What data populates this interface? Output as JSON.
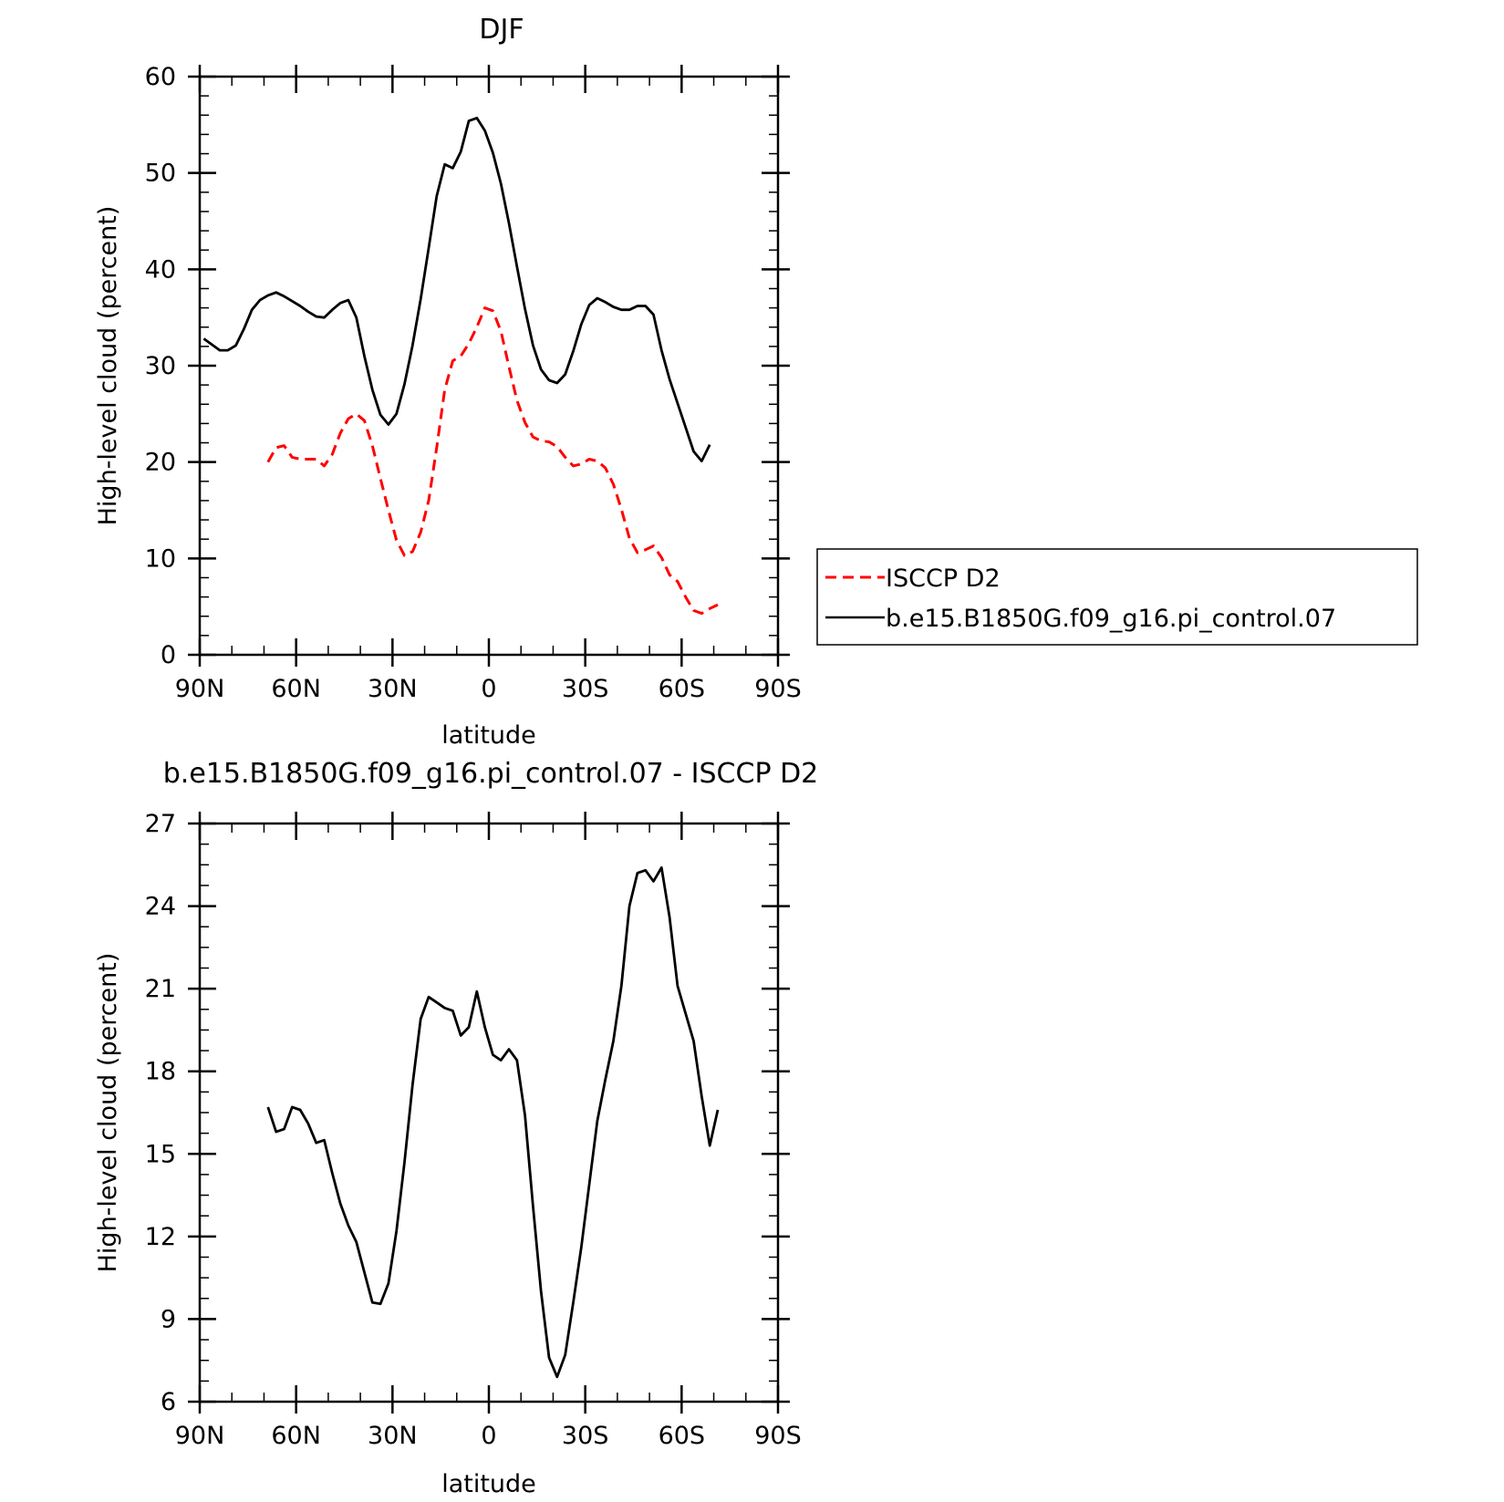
{
  "colors": {
    "model": "#000000",
    "obs": "#ff0000"
  },
  "chart_data": [
    {
      "type": "line",
      "title": "DJF",
      "xlabel": "latitude",
      "ylabel": "High-level cloud (percent)",
      "xlim": [
        90,
        -90
      ],
      "ylim": [
        0,
        60
      ],
      "yticks": [
        0,
        10,
        20,
        30,
        40,
        50,
        60
      ],
      "xticks": [
        90,
        60,
        30,
        0,
        -30,
        -60,
        -90
      ],
      "xtick_labels": [
        "90N",
        "60N",
        "30N",
        "0",
        "30S",
        "60S",
        "90S"
      ],
      "legend_position": "right",
      "series": [
        {
          "name": "ISCCP D2",
          "style": "dashed",
          "color": "#ff0000",
          "x": [
            68.75,
            66.25,
            63.75,
            61.25,
            58.75,
            56.25,
            53.75,
            51.25,
            48.75,
            46.25,
            43.75,
            41.25,
            38.75,
            36.25,
            33.75,
            31.25,
            28.75,
            26.25,
            23.75,
            21.25,
            18.75,
            16.25,
            13.75,
            11.25,
            8.75,
            6.25,
            3.75,
            1.25,
            -1.25,
            -3.75,
            -6.25,
            -8.75,
            -11.25,
            -13.75,
            -16.25,
            -18.75,
            -21.25,
            -23.75,
            -26.25,
            -28.75,
            -31.25,
            -33.75,
            -36.25,
            -38.75,
            -41.25,
            -43.75,
            -46.25,
            -48.75,
            -51.25,
            -53.75,
            -56.25,
            -58.75,
            -61.25,
            -63.75,
            -66.25,
            -68.75,
            -71.25,
            -73.75,
            -76.25,
            -78.75,
            -81.25,
            -83.75,
            -86.25,
            -88.75
          ],
          "y": [
            20.0,
            21.5,
            21.7,
            20.5,
            20.3,
            20.3,
            20.3,
            19.6,
            20.8,
            23.0,
            24.5,
            25.0,
            24.3,
            21.7,
            18.3,
            15.0,
            11.9,
            10.3,
            10.7,
            12.7,
            16.0,
            21.5,
            27.5,
            30.5,
            31.0,
            32.3,
            34.0,
            36.0,
            35.7,
            33.6,
            29.9,
            26.4,
            24.1,
            22.6,
            22.2,
            22.1,
            21.6,
            20.5,
            19.6,
            19.8,
            20.3,
            20.1,
            19.4,
            17.7,
            15.1,
            12.1,
            10.6,
            10.9,
            11.3,
            10.1,
            8.3,
            7.6,
            6.0,
            4.6,
            4.3,
            4.8,
            5.2,
            null,
            null,
            null,
            null,
            null,
            null,
            null
          ]
        },
        {
          "name": "b.e15.B1850G.f09_g16.pi_control.07",
          "style": "solid",
          "color": "#000000",
          "x": [
            88.75,
            86.25,
            83.75,
            81.25,
            78.75,
            76.25,
            73.75,
            71.25,
            68.75,
            66.25,
            63.75,
            61.25,
            58.75,
            56.25,
            53.75,
            51.25,
            48.75,
            46.25,
            43.75,
            41.25,
            38.75,
            36.25,
            33.75,
            31.25,
            28.75,
            26.25,
            23.75,
            21.25,
            18.75,
            16.25,
            13.75,
            11.25,
            8.75,
            6.25,
            3.75,
            1.25,
            -1.25,
            -3.75,
            -6.25,
            -8.75,
            -11.25,
            -13.75,
            -16.25,
            -18.75,
            -21.25,
            -23.75,
            -26.25,
            -28.75,
            -31.25,
            -33.75,
            -36.25,
            -38.75,
            -41.25,
            -43.75,
            -46.25,
            -48.75,
            -51.25,
            -53.75,
            -56.25,
            -58.75,
            -61.25,
            -63.75,
            -66.25,
            -68.75,
            -71.25,
            -73.75,
            -76.25,
            -78.75,
            -81.25,
            -83.75,
            -86.25,
            -88.75
          ],
          "y": [
            32.8,
            32.2,
            31.6,
            31.6,
            32.1,
            33.8,
            35.8,
            36.8,
            37.3,
            37.6,
            37.2,
            36.7,
            36.2,
            35.6,
            35.1,
            35.0,
            35.8,
            36.5,
            36.8,
            35.0,
            31.0,
            27.5,
            24.9,
            23.9,
            25.0,
            28.1,
            32.1,
            36.9,
            42.2,
            47.6,
            50.9,
            50.5,
            52.2,
            55.4,
            55.7,
            54.4,
            52.1,
            48.9,
            44.8,
            40.3,
            35.9,
            32.1,
            29.6,
            28.5,
            28.2,
            29.1,
            31.5,
            34.3,
            36.3,
            37.0,
            36.6,
            36.1,
            35.8,
            35.8,
            36.2,
            36.2,
            35.3,
            31.6,
            28.6,
            26.1,
            23.6,
            21.1,
            20.1,
            21.8,
            null,
            null,
            null,
            null,
            null,
            null,
            null,
            null
          ]
        }
      ]
    },
    {
      "type": "line",
      "title": "b.e15.B1850G.f09_g16.pi_control.07 - ISCCP D2",
      "xlabel": "latitude",
      "ylabel": "High-level cloud (percent)",
      "xlim": [
        90,
        -90
      ],
      "ylim": [
        6,
        27
      ],
      "yticks": [
        6,
        9,
        12,
        15,
        18,
        21,
        24,
        27
      ],
      "xticks": [
        90,
        60,
        30,
        0,
        -30,
        -60,
        -90
      ],
      "xtick_labels": [
        "90N",
        "60N",
        "30N",
        "0",
        "30S",
        "60S",
        "90S"
      ],
      "series": [
        {
          "name": "",
          "style": "solid",
          "color": "#000000",
          "x": [
            68.75,
            66.25,
            63.75,
            61.25,
            58.75,
            56.25,
            53.75,
            51.25,
            48.75,
            46.25,
            43.75,
            41.25,
            38.75,
            36.25,
            33.75,
            31.25,
            28.75,
            26.25,
            23.75,
            21.25,
            18.75,
            16.25,
            13.75,
            11.25,
            8.75,
            6.25,
            3.75,
            1.25,
            -1.25,
            -3.75,
            -6.25,
            -8.75,
            -11.25,
            -13.75,
            -16.25,
            -18.75,
            -21.25,
            -23.75,
            -26.25,
            -28.75,
            -31.25,
            -33.75,
            -36.25,
            -38.75,
            -41.25,
            -43.75,
            -46.25,
            -48.75,
            -51.25,
            -53.75,
            -56.25,
            -58.75,
            -61.25,
            -63.75,
            -66.25,
            -68.75,
            -71.25,
            -73.75,
            -76.25,
            -78.75,
            -81.25,
            -83.75,
            -86.25,
            -88.75
          ],
          "y": [
            16.7,
            15.8,
            15.9,
            16.7,
            16.6,
            16.1,
            15.4,
            15.5,
            14.3,
            13.2,
            12.4,
            11.8,
            10.7,
            9.6,
            9.55,
            10.3,
            12.2,
            14.7,
            17.5,
            19.9,
            20.7,
            20.5,
            20.3,
            20.2,
            19.3,
            19.6,
            20.9,
            19.6,
            18.6,
            18.4,
            18.8,
            18.4,
            16.4,
            13.1,
            10.0,
            7.6,
            6.9,
            7.7,
            9.6,
            11.6,
            13.9,
            16.2,
            17.7,
            19.1,
            21.1,
            24.0,
            25.2,
            25.3,
            24.9,
            25.4,
            23.6,
            21.1,
            20.1,
            19.1,
            17.1,
            15.3,
            16.6,
            null,
            null,
            null,
            null,
            null,
            null,
            null
          ]
        }
      ]
    }
  ]
}
